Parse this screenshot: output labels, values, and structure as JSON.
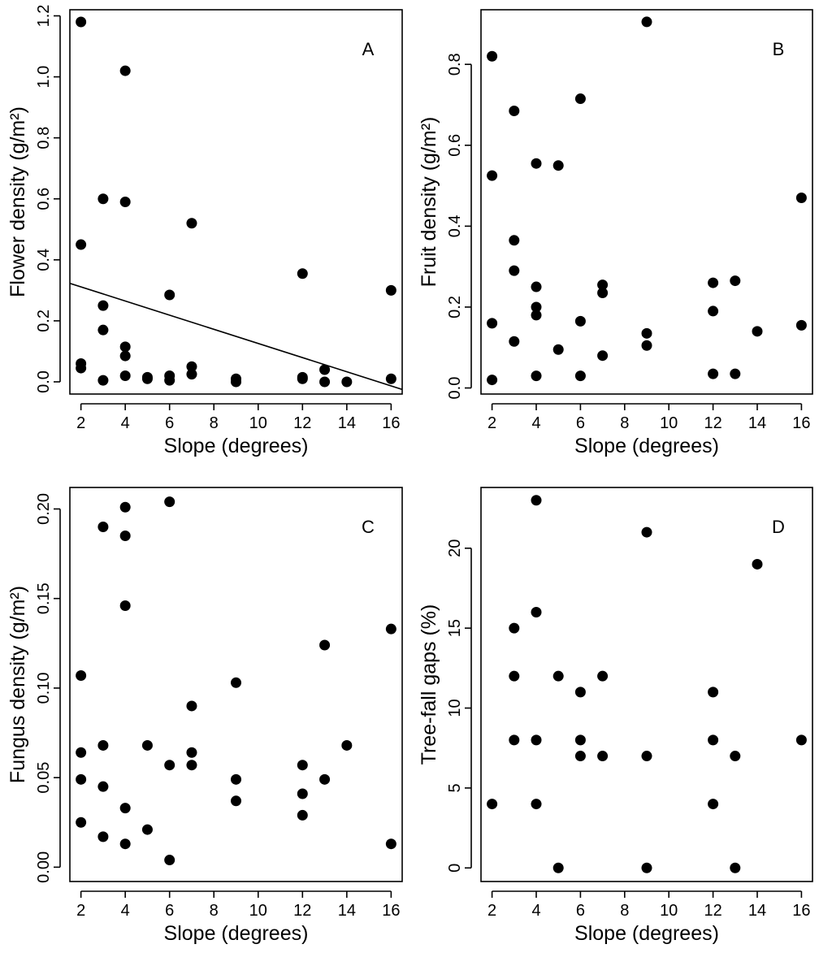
{
  "chart_data": [
    {
      "type": "scatter",
      "panel_label": "A",
      "xlabel": "Slope (degrees)",
      "ylabel": "Flower density (g/m²)",
      "xlim": [
        1.5,
        16.5
      ],
      "ylim": [
        -0.04,
        1.22
      ],
      "xticks": [
        "2",
        "4",
        "6",
        "8",
        "10",
        "12",
        "14",
        "16"
      ],
      "yticks": [
        "0.0",
        "0.2",
        "0.4",
        "0.6",
        "0.8",
        "1.0",
        "1.2"
      ],
      "regression_line": {
        "x": [
          1.5,
          16.5
        ],
        "y": [
          0.323,
          -0.025
        ]
      },
      "points": [
        [
          2,
          1.18
        ],
        [
          2,
          0.45
        ],
        [
          2,
          0.06
        ],
        [
          2,
          0.045
        ],
        [
          3,
          0.6
        ],
        [
          3,
          0.25
        ],
        [
          3,
          0.17
        ],
        [
          3,
          0.005
        ],
        [
          4,
          1.02
        ],
        [
          4,
          0.59
        ],
        [
          4,
          0.115
        ],
        [
          4,
          0.085
        ],
        [
          4,
          0.02
        ],
        [
          5,
          0.015
        ],
        [
          5,
          0.01
        ],
        [
          6,
          0.285
        ],
        [
          6,
          0.02
        ],
        [
          6,
          0.005
        ],
        [
          7,
          0.52
        ],
        [
          7,
          0.05
        ],
        [
          7,
          0.025
        ],
        [
          9,
          0.01
        ],
        [
          9,
          0.0
        ],
        [
          12,
          0.355
        ],
        [
          12,
          0.015
        ],
        [
          12,
          0.01
        ],
        [
          13,
          0.04
        ],
        [
          13,
          0.0
        ],
        [
          14,
          0.0
        ],
        [
          16,
          0.3
        ],
        [
          16,
          0.01
        ]
      ]
    },
    {
      "type": "scatter",
      "panel_label": "B",
      "xlabel": "Slope (degrees)",
      "ylabel": "Fruit density (g/m²)",
      "xlim": [
        1.5,
        16.5
      ],
      "ylim": [
        -0.015,
        0.935
      ],
      "xticks": [
        "2",
        "4",
        "6",
        "8",
        "10",
        "12",
        "14",
        "16"
      ],
      "yticks": [
        "0.0",
        "0.2",
        "0.4",
        "0.6",
        "0.8"
      ],
      "points": [
        [
          2,
          0.82
        ],
        [
          2,
          0.525
        ],
        [
          2,
          0.16
        ],
        [
          2,
          0.02
        ],
        [
          3,
          0.685
        ],
        [
          3,
          0.365
        ],
        [
          3,
          0.29
        ],
        [
          3,
          0.115
        ],
        [
          4,
          0.555
        ],
        [
          4,
          0.25
        ],
        [
          4,
          0.2
        ],
        [
          4,
          0.18
        ],
        [
          4,
          0.03
        ],
        [
          5,
          0.55
        ],
        [
          5,
          0.095
        ],
        [
          6,
          0.715
        ],
        [
          6,
          0.165
        ],
        [
          6,
          0.03
        ],
        [
          7,
          0.255
        ],
        [
          7,
          0.235
        ],
        [
          7,
          0.08
        ],
        [
          9,
          0.905
        ],
        [
          9,
          0.135
        ],
        [
          9,
          0.105
        ],
        [
          12,
          0.26
        ],
        [
          12,
          0.19
        ],
        [
          12,
          0.035
        ],
        [
          13,
          0.265
        ],
        [
          13,
          0.035
        ],
        [
          14,
          0.14
        ],
        [
          16,
          0.47
        ],
        [
          16,
          0.155
        ]
      ]
    },
    {
      "type": "scatter",
      "panel_label": "C",
      "xlabel": "Slope (degrees)",
      "ylabel": "Fungus density (g/m²)",
      "xlim": [
        1.5,
        16.5
      ],
      "ylim": [
        -0.008,
        0.212
      ],
      "xticks": [
        "2",
        "4",
        "6",
        "8",
        "10",
        "12",
        "14",
        "16"
      ],
      "yticks": [
        "0.00",
        "0.05",
        "0.10",
        "0.15",
        "0.20"
      ],
      "points": [
        [
          2,
          0.107
        ],
        [
          2,
          0.064
        ],
        [
          2,
          0.049
        ],
        [
          2,
          0.025
        ],
        [
          3,
          0.19
        ],
        [
          3,
          0.068
        ],
        [
          3,
          0.045
        ],
        [
          3,
          0.017
        ],
        [
          4,
          0.201
        ],
        [
          4,
          0.185
        ],
        [
          4,
          0.146
        ],
        [
          4,
          0.033
        ],
        [
          4,
          0.013
        ],
        [
          5,
          0.068
        ],
        [
          5,
          0.021
        ],
        [
          6,
          0.204
        ],
        [
          6,
          0.057
        ],
        [
          6,
          0.004
        ],
        [
          7,
          0.09
        ],
        [
          7,
          0.064
        ],
        [
          7,
          0.057
        ],
        [
          9,
          0.103
        ],
        [
          9,
          0.049
        ],
        [
          9,
          0.037
        ],
        [
          12,
          0.057
        ],
        [
          12,
          0.041
        ],
        [
          12,
          0.029
        ],
        [
          13,
          0.124
        ],
        [
          13,
          0.049
        ],
        [
          14,
          0.068
        ],
        [
          16,
          0.133
        ],
        [
          16,
          0.013
        ]
      ]
    },
    {
      "type": "scatter",
      "panel_label": "D",
      "xlabel": "Slope (degrees)",
      "ylabel": "Tree-fall gaps (%)",
      "xlim": [
        1.5,
        16.5
      ],
      "ylim": [
        -0.85,
        23.8
      ],
      "xticks": [
        "2",
        "4",
        "6",
        "8",
        "10",
        "12",
        "14",
        "16"
      ],
      "yticks": [
        "0",
        "5",
        "10",
        "15",
        "20"
      ],
      "points": [
        [
          2,
          4
        ],
        [
          3,
          15
        ],
        [
          3,
          12
        ],
        [
          3,
          8
        ],
        [
          4,
          23
        ],
        [
          4,
          16
        ],
        [
          4,
          8
        ],
        [
          4,
          4
        ],
        [
          5,
          12
        ],
        [
          5,
          0
        ],
        [
          6,
          11
        ],
        [
          6,
          8
        ],
        [
          6,
          7
        ],
        [
          7,
          12
        ],
        [
          7,
          7
        ],
        [
          9,
          21
        ],
        [
          9,
          7
        ],
        [
          9,
          0
        ],
        [
          12,
          11
        ],
        [
          12,
          8
        ],
        [
          12,
          4
        ],
        [
          13,
          7
        ],
        [
          13,
          0
        ],
        [
          14,
          19
        ],
        [
          16,
          8
        ]
      ]
    }
  ]
}
